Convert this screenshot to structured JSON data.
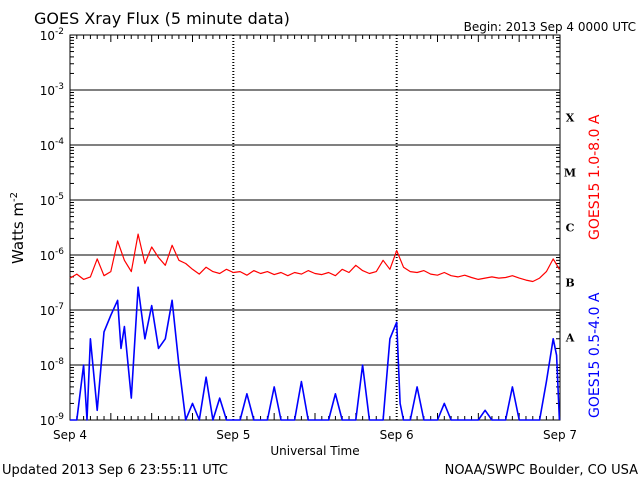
{
  "colors": {
    "background": "#ffffff",
    "axis": "#000000",
    "long_channel": "#ff0000",
    "short_channel": "#0000ff"
  },
  "header": {
    "title": "GOES Xray Flux (5 minute data)",
    "begin_label": "Begin:  2013 Sep 4 0000 UTC"
  },
  "footer": {
    "updated": "Updated 2013 Sep  6 23:55:11 UTC",
    "credit": "NOAA/SWPC Boulder, CO USA"
  },
  "chart_data": {
    "type": "line",
    "title": "GOES Xray Flux (5 minute data)",
    "xlabel": "Universal Time",
    "ylabel": "Watts m",
    "ylabel_superscript": "-2",
    "y_scale": "log",
    "ylim": [
      1e-09,
      0.01
    ],
    "xlim": [
      "2013-09-04 00:00",
      "2013-09-07 00:00"
    ],
    "grid": true,
    "x_ticks": [
      {
        "value": "2013-09-04",
        "label": "Sep 4"
      },
      {
        "value": "2013-09-05",
        "label": "Sep 5"
      },
      {
        "value": "2013-09-06",
        "label": "Sep 6"
      },
      {
        "value": "2013-09-07",
        "label": "Sep 7"
      }
    ],
    "y_ticks": [
      {
        "exponent": -9,
        "base": "10",
        "sup": "-9"
      },
      {
        "exponent": -8,
        "base": "10",
        "sup": "-8"
      },
      {
        "exponent": -7,
        "base": "10",
        "sup": "-7"
      },
      {
        "exponent": -6,
        "base": "10",
        "sup": "-6"
      },
      {
        "exponent": -5,
        "base": "10",
        "sup": "-5"
      },
      {
        "exponent": -4,
        "base": "10",
        "sup": "-4"
      },
      {
        "exponent": -3,
        "base": "10",
        "sup": "-3"
      },
      {
        "exponent": -2,
        "base": "10",
        "sup": "-2"
      }
    ],
    "flare_classes": [
      {
        "label": "A",
        "exponent": -8
      },
      {
        "label": "B",
        "exponent": -7
      },
      {
        "label": "C",
        "exponent": -6
      },
      {
        "label": "M",
        "exponent": -5
      },
      {
        "label": "X",
        "exponent": -4
      }
    ],
    "series": [
      {
        "name": "GOES15 1.0-8.0 A",
        "color": "#ff0000",
        "points": [
          [
            "2013-09-04 00:00",
            3.8e-07
          ],
          [
            "2013-09-04 01:00",
            4.5e-07
          ],
          [
            "2013-09-04 02:00",
            3.6e-07
          ],
          [
            "2013-09-04 03:00",
            4e-07
          ],
          [
            "2013-09-04 04:00",
            8.5e-07
          ],
          [
            "2013-09-04 05:00",
            4.2e-07
          ],
          [
            "2013-09-04 06:00",
            5e-07
          ],
          [
            "2013-09-04 07:00",
            1.8e-06
          ],
          [
            "2013-09-04 08:00",
            8e-07
          ],
          [
            "2013-09-04 09:00",
            5e-07
          ],
          [
            "2013-09-04 10:00",
            2.4e-06
          ],
          [
            "2013-09-04 11:00",
            7e-07
          ],
          [
            "2013-09-04 12:00",
            1.4e-06
          ],
          [
            "2013-09-04 13:00",
            9e-07
          ],
          [
            "2013-09-04 14:00",
            6.5e-07
          ],
          [
            "2013-09-04 15:00",
            1.5e-06
          ],
          [
            "2013-09-04 16:00",
            8e-07
          ],
          [
            "2013-09-04 17:00",
            7e-07
          ],
          [
            "2013-09-04 18:00",
            5.5e-07
          ],
          [
            "2013-09-04 19:00",
            4.5e-07
          ],
          [
            "2013-09-04 20:00",
            6e-07
          ],
          [
            "2013-09-04 21:00",
            5e-07
          ],
          [
            "2013-09-04 22:00",
            4.6e-07
          ],
          [
            "2013-09-04 23:00",
            5.5e-07
          ],
          [
            "2013-09-05 00:00",
            4.8e-07
          ],
          [
            "2013-09-05 01:00",
            5e-07
          ],
          [
            "2013-09-05 02:00",
            4.3e-07
          ],
          [
            "2013-09-05 03:00",
            5.2e-07
          ],
          [
            "2013-09-05 04:00",
            4.6e-07
          ],
          [
            "2013-09-05 05:00",
            5e-07
          ],
          [
            "2013-09-05 06:00",
            4.4e-07
          ],
          [
            "2013-09-05 07:00",
            4.8e-07
          ],
          [
            "2013-09-05 08:00",
            4.2e-07
          ],
          [
            "2013-09-05 09:00",
            4.8e-07
          ],
          [
            "2013-09-05 10:00",
            4.5e-07
          ],
          [
            "2013-09-05 11:00",
            5.2e-07
          ],
          [
            "2013-09-05 12:00",
            4.6e-07
          ],
          [
            "2013-09-05 13:00",
            4.4e-07
          ],
          [
            "2013-09-05 14:00",
            4.8e-07
          ],
          [
            "2013-09-05 15:00",
            4.2e-07
          ],
          [
            "2013-09-05 16:00",
            5.5e-07
          ],
          [
            "2013-09-05 17:00",
            4.8e-07
          ],
          [
            "2013-09-05 18:00",
            6.5e-07
          ],
          [
            "2013-09-05 19:00",
            5.2e-07
          ],
          [
            "2013-09-05 20:00",
            4.6e-07
          ],
          [
            "2013-09-05 21:00",
            5e-07
          ],
          [
            "2013-09-05 22:00",
            8e-07
          ],
          [
            "2013-09-05 23:00",
            5.5e-07
          ],
          [
            "2013-09-06 00:00",
            1.2e-06
          ],
          [
            "2013-09-06 01:00",
            6e-07
          ],
          [
            "2013-09-06 02:00",
            5e-07
          ],
          [
            "2013-09-06 03:00",
            4.8e-07
          ],
          [
            "2013-09-06 04:00",
            5.2e-07
          ],
          [
            "2013-09-06 05:00",
            4.5e-07
          ],
          [
            "2013-09-06 06:00",
            4.3e-07
          ],
          [
            "2013-09-06 07:00",
            4.8e-07
          ],
          [
            "2013-09-06 08:00",
            4.2e-07
          ],
          [
            "2013-09-06 09:00",
            4e-07
          ],
          [
            "2013-09-06 10:00",
            4.3e-07
          ],
          [
            "2013-09-06 11:00",
            3.9e-07
          ],
          [
            "2013-09-06 12:00",
            3.6e-07
          ],
          [
            "2013-09-06 13:00",
            3.8e-07
          ],
          [
            "2013-09-06 14:00",
            4e-07
          ],
          [
            "2013-09-06 15:00",
            3.8e-07
          ],
          [
            "2013-09-06 16:00",
            3.9e-07
          ],
          [
            "2013-09-06 17:00",
            4.2e-07
          ],
          [
            "2013-09-06 18:00",
            3.8e-07
          ],
          [
            "2013-09-06 19:00",
            3.5e-07
          ],
          [
            "2013-09-06 20:00",
            3.3e-07
          ],
          [
            "2013-09-06 21:00",
            3.8e-07
          ],
          [
            "2013-09-06 22:00",
            5e-07
          ],
          [
            "2013-09-06 23:00",
            8.5e-07
          ],
          [
            "2013-09-06 23:55",
            5.5e-07
          ]
        ]
      },
      {
        "name": "GOES15 0.5-4.0 A",
        "color": "#0000ff",
        "points": [
          [
            "2013-09-04 00:00",
            1e-09
          ],
          [
            "2013-09-04 01:00",
            1e-09
          ],
          [
            "2013-09-04 02:00",
            1e-08
          ],
          [
            "2013-09-04 02:30",
            1e-09
          ],
          [
            "2013-09-04 03:00",
            3e-08
          ],
          [
            "2013-09-04 04:00",
            1.5e-09
          ],
          [
            "2013-09-04 05:00",
            4e-08
          ],
          [
            "2013-09-04 06:00",
            8e-08
          ],
          [
            "2013-09-04 07:00",
            1.5e-07
          ],
          [
            "2013-09-04 07:30",
            2e-08
          ],
          [
            "2013-09-04 08:00",
            5e-08
          ],
          [
            "2013-09-04 09:00",
            2.5e-09
          ],
          [
            "2013-09-04 10:00",
            2.6e-07
          ],
          [
            "2013-09-04 11:00",
            3e-08
          ],
          [
            "2013-09-04 12:00",
            1.2e-07
          ],
          [
            "2013-09-04 13:00",
            2e-08
          ],
          [
            "2013-09-04 14:00",
            3e-08
          ],
          [
            "2013-09-04 15:00",
            1.5e-07
          ],
          [
            "2013-09-04 16:00",
            1e-08
          ],
          [
            "2013-09-04 17:00",
            1e-09
          ],
          [
            "2013-09-04 18:00",
            2e-09
          ],
          [
            "2013-09-04 19:00",
            1e-09
          ],
          [
            "2013-09-04 20:00",
            6e-09
          ],
          [
            "2013-09-04 21:00",
            1e-09
          ],
          [
            "2013-09-04 22:00",
            2.5e-09
          ],
          [
            "2013-09-04 23:00",
            1e-09
          ],
          [
            "2013-09-05 00:00",
            1e-09
          ],
          [
            "2013-09-05 01:00",
            1e-09
          ],
          [
            "2013-09-05 02:00",
            3e-09
          ],
          [
            "2013-09-05 03:00",
            1e-09
          ],
          [
            "2013-09-05 05:00",
            1e-09
          ],
          [
            "2013-09-05 06:00",
            4e-09
          ],
          [
            "2013-09-05 07:00",
            1e-09
          ],
          [
            "2013-09-05 09:00",
            1e-09
          ],
          [
            "2013-09-05 10:00",
            5e-09
          ],
          [
            "2013-09-05 11:00",
            1e-09
          ],
          [
            "2013-09-05 14:00",
            1e-09
          ],
          [
            "2013-09-05 15:00",
            3e-09
          ],
          [
            "2013-09-05 16:00",
            1e-09
          ],
          [
            "2013-09-05 18:00",
            1e-09
          ],
          [
            "2013-09-05 19:00",
            1e-08
          ],
          [
            "2013-09-05 20:00",
            1e-09
          ],
          [
            "2013-09-05 22:00",
            1e-09
          ],
          [
            "2013-09-05 23:00",
            3e-08
          ],
          [
            "2013-09-06 00:00",
            6e-08
          ],
          [
            "2013-09-06 00:30",
            2e-09
          ],
          [
            "2013-09-06 01:00",
            1e-09
          ],
          [
            "2013-09-06 02:00",
            1e-09
          ],
          [
            "2013-09-06 03:00",
            4e-09
          ],
          [
            "2013-09-06 04:00",
            1e-09
          ],
          [
            "2013-09-06 06:00",
            1e-09
          ],
          [
            "2013-09-06 07:00",
            2e-09
          ],
          [
            "2013-09-06 08:00",
            1e-09
          ],
          [
            "2013-09-06 12:00",
            1e-09
          ],
          [
            "2013-09-06 13:00",
            1.5e-09
          ],
          [
            "2013-09-06 14:00",
            1e-09
          ],
          [
            "2013-09-06 16:00",
            1e-09
          ],
          [
            "2013-09-06 17:00",
            4e-09
          ],
          [
            "2013-09-06 18:00",
            1e-09
          ],
          [
            "2013-09-06 21:00",
            1e-09
          ],
          [
            "2013-09-06 22:00",
            5e-09
          ],
          [
            "2013-09-06 23:00",
            3e-08
          ],
          [
            "2013-09-06 23:30",
            1.5e-08
          ],
          [
            "2013-09-06 23:55",
            1e-09
          ]
        ]
      }
    ]
  }
}
